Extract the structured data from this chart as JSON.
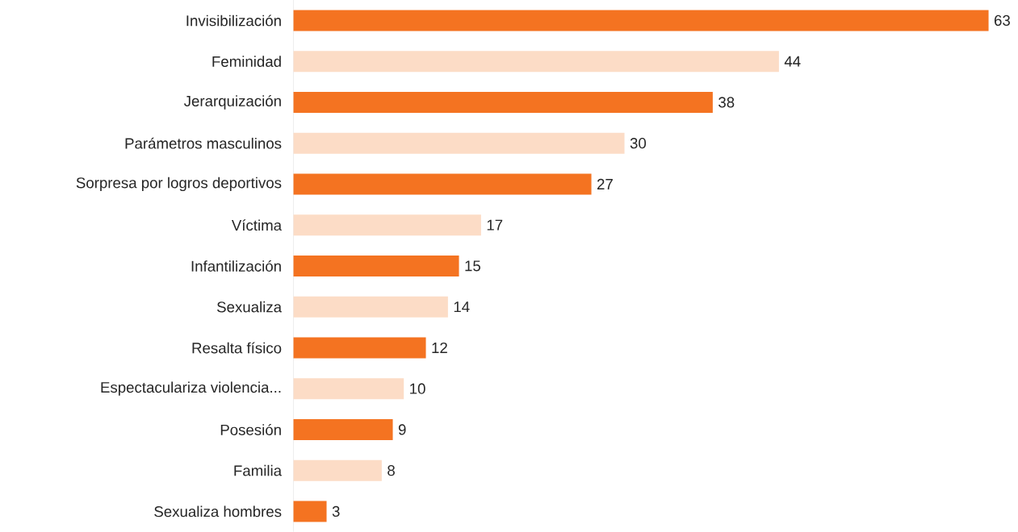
{
  "chart_data": {
    "type": "bar",
    "orientation": "horizontal",
    "data_labels": true,
    "categories": [
      "Invisibilización",
      "Feminidad",
      "Jerarquización",
      "Parámetros masculinos",
      "Sorpresa por logros deportivos",
      "Víctima",
      "Infantilización",
      "Sexualiza",
      "Resalta físico",
      "Espectaculariza violencia...",
      "Posesión",
      "Familia",
      "Sexualiza hombres"
    ],
    "values": [
      63,
      44,
      38,
      30,
      27,
      17,
      15,
      14,
      12,
      10,
      9,
      8,
      3
    ],
    "colors": [
      "#f47321",
      "#fcdcc6",
      "#f47321",
      "#fcdcc6",
      "#f47321",
      "#fcdcc6",
      "#f47321",
      "#fcdcc6",
      "#f47321",
      "#fcdcc6",
      "#f47321",
      "#fcdcc6",
      "#f47321"
    ]
  }
}
